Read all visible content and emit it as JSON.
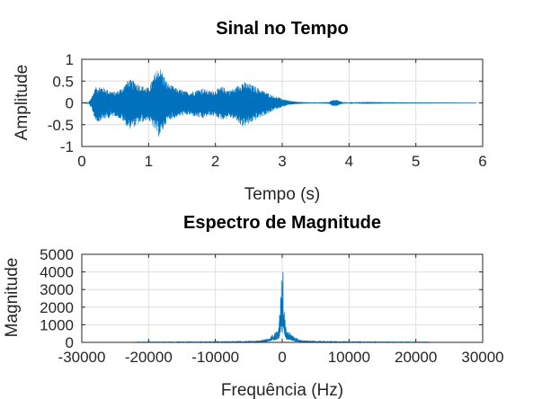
{
  "colors": {
    "signal": "#0072bd",
    "axis": "#262626",
    "grid": "#dedede"
  },
  "chart_data": [
    {
      "type": "line",
      "title": "Sinal no Tempo",
      "xlabel": "Tempo (s)",
      "ylabel": "Amplitude",
      "xlim": [
        0,
        6
      ],
      "ylim": [
        -1,
        1
      ],
      "grid": true,
      "xticks": [
        0,
        1,
        2,
        3,
        4,
        5,
        6
      ],
      "xtick_labels": [
        "0",
        "1",
        "2",
        "3",
        "4",
        "5",
        "6"
      ],
      "yticks": [
        -1,
        -0.5,
        0,
        0.5,
        1
      ],
      "ytick_labels": [
        "-1",
        "-0.5",
        "0",
        "0.5",
        "1"
      ],
      "signal_duration": 5.9,
      "envelope": {
        "x": [
          0,
          0.1,
          0.15,
          0.2,
          0.25,
          0.3,
          0.4,
          0.5,
          0.6,
          0.7,
          0.8,
          0.9,
          1.0,
          1.1,
          1.15,
          1.2,
          1.25,
          1.3,
          1.4,
          1.5,
          1.6,
          1.7,
          1.8,
          1.9,
          2.0,
          2.1,
          2.2,
          2.3,
          2.4,
          2.5,
          2.6,
          2.7,
          2.8,
          2.9,
          3.0,
          3.1,
          3.2,
          3.3,
          3.5,
          3.7,
          3.75,
          3.8,
          3.85,
          3.9,
          4.0,
          4.2,
          4.5,
          5.0,
          5.5,
          5.9
        ],
        "upper": [
          0,
          0.01,
          0.15,
          0.35,
          0.4,
          0.38,
          0.3,
          0.25,
          0.35,
          0.55,
          0.5,
          0.4,
          0.35,
          0.7,
          0.85,
          0.75,
          0.55,
          0.45,
          0.35,
          0.3,
          0.25,
          0.3,
          0.35,
          0.28,
          0.3,
          0.38,
          0.3,
          0.35,
          0.5,
          0.45,
          0.38,
          0.3,
          0.22,
          0.15,
          0.1,
          0.05,
          0.03,
          0.02,
          0.01,
          0.02,
          0.07,
          0.08,
          0.05,
          0.02,
          0.01,
          0.008,
          0.005,
          0.003,
          0.002,
          0.001
        ],
        "lower": [
          0,
          -0.01,
          -0.15,
          -0.4,
          -0.45,
          -0.4,
          -0.35,
          -0.3,
          -0.4,
          -0.6,
          -0.55,
          -0.45,
          -0.4,
          -0.65,
          -0.78,
          -0.7,
          -0.5,
          -0.4,
          -0.35,
          -0.3,
          -0.28,
          -0.32,
          -0.38,
          -0.3,
          -0.32,
          -0.4,
          -0.33,
          -0.4,
          -0.55,
          -0.5,
          -0.4,
          -0.32,
          -0.25,
          -0.15,
          -0.1,
          -0.05,
          -0.03,
          -0.02,
          -0.01,
          -0.02,
          -0.07,
          -0.08,
          -0.05,
          -0.02,
          -0.01,
          -0.008,
          -0.005,
          -0.003,
          -0.002,
          -0.001
        ]
      }
    },
    {
      "type": "line",
      "title": "Espectro de Magnitude",
      "xlabel": "Frequência (Hz)",
      "ylabel": "Magnitude",
      "xlim": [
        -30000,
        30000
      ],
      "ylim": [
        0,
        5000
      ],
      "grid": true,
      "xticks": [
        -30000,
        -20000,
        -10000,
        0,
        10000,
        20000,
        30000
      ],
      "xtick_labels": [
        "-30000",
        "-20000",
        "-10000",
        "0",
        "10000",
        "20000",
        "30000"
      ],
      "yticks": [
        0,
        1000,
        2000,
        3000,
        4000,
        5000
      ],
      "ytick_labels": [
        "0",
        "1000",
        "2000",
        "3000",
        "4000",
        "5000"
      ],
      "frequency_range": [
        -22050,
        22050
      ],
      "envelope": {
        "x": [
          -22050,
          -15000,
          -8000,
          -5000,
          -3000,
          -2000,
          -1500,
          -1000,
          -700,
          -500,
          -300,
          -200,
          -100,
          0,
          100,
          200,
          300,
          500,
          700,
          1000,
          1500,
          2000,
          3000,
          5000,
          8000,
          15000,
          22050
        ],
        "values": [
          15,
          20,
          30,
          60,
          120,
          250,
          450,
          600,
          700,
          900,
          2200,
          3000,
          4200,
          1800,
          4200,
          3000,
          2200,
          900,
          700,
          600,
          450,
          250,
          120,
          60,
          30,
          20,
          15
        ]
      }
    }
  ]
}
